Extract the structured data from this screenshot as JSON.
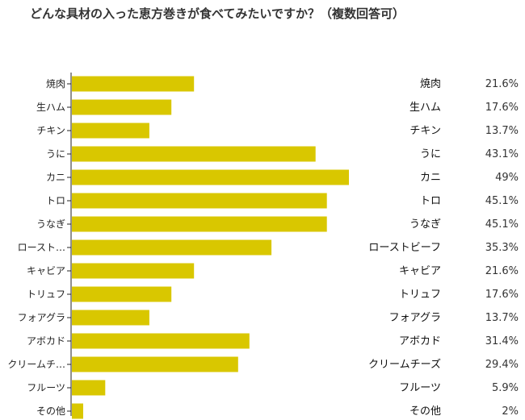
{
  "chart_data": {
    "type": "bar",
    "orientation": "horizontal",
    "title": "どんな具材の入った恵方巻きが食べてみたいですか？（複数回答可）",
    "categories": [
      "焼肉",
      "生ハム",
      "チキン",
      "うに",
      "カニ",
      "トロ",
      "うなぎ",
      "ロースト…",
      "キャビア",
      "トリュフ",
      "フォアグラ",
      "アボカド",
      "クリームチ…",
      "フルーツ",
      "その他"
    ],
    "legend_labels": [
      "焼肉",
      "生ハム",
      "チキン",
      "うに",
      "カニ",
      "トロ",
      "うなぎ",
      "ローストビーフ",
      "キャビア",
      "トリュフ",
      "フォアグラ",
      "アボカド",
      "クリームチーズ",
      "フルーツ",
      "その他"
    ],
    "values": [
      21.6,
      17.6,
      13.7,
      43.1,
      49,
      45.1,
      45.1,
      35.3,
      21.6,
      17.6,
      13.7,
      31.4,
      29.4,
      5.9,
      2
    ],
    "value_labels": [
      "21.6%",
      "17.6%",
      "13.7%",
      "43.1%",
      "49%",
      "45.1%",
      "45.1%",
      "35.3%",
      "21.6%",
      "17.6%",
      "13.7%",
      "31.4%",
      "29.4%",
      "5.9%",
      "2%"
    ],
    "bar_color": "#d9c700",
    "xlim": [
      0,
      50
    ],
    "grid": false
  }
}
